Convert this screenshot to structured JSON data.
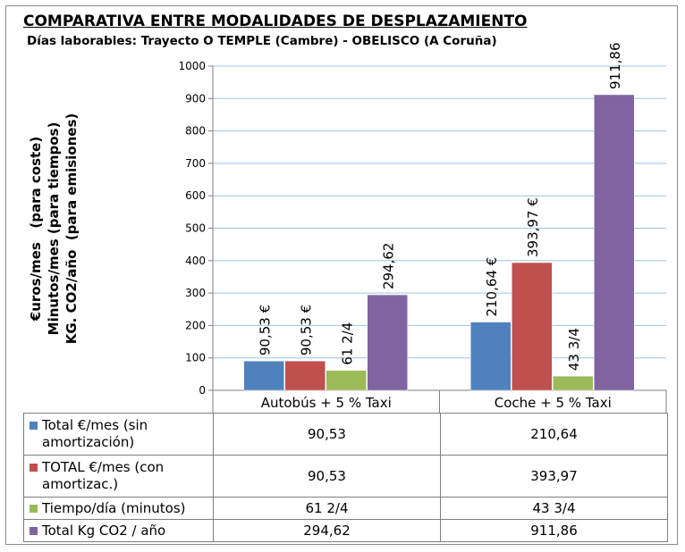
{
  "title": "COMPARATIVA ENTRE MODALIDADES DE DESPLAZAMIENTO",
  "subtitle": "Días laborables: Trayecto O TEMPLE (Cambre) - OBELISCO (A Coruña)",
  "ylabel_lines": [
    "€uros/mes   (para coste)",
    "Minutos/mes (para tiempos)",
    "KG. CO2/año  (para emisiones)"
  ],
  "chart_data": {
    "type": "bar",
    "title": "COMPARATIVA ENTRE MODALIDADES DE DESPLAZAMIENTO",
    "subtitle": "Días laborables: Trayecto O TEMPLE (Cambre) - OBELISCO (A Coruña)",
    "xlabel": "",
    "ylabel": "€uros/mes (para coste) / Minutos/mes (para tiempos) / KG. CO2/año (para emisiones)",
    "ylim": [
      0,
      1000
    ],
    "yticks": [
      0,
      100,
      200,
      300,
      400,
      500,
      600,
      700,
      800,
      900,
      1000
    ],
    "grid": true,
    "categories": [
      "Autobús + 5 % Taxi",
      "Coche + 5 % Taxi"
    ],
    "series": [
      {
        "name": "Total €/mes (sin amortización)",
        "name_lines": [
          "Total €/mes (sin",
          "amortización)"
        ],
        "color": "#4f81bd",
        "values": [
          90.53,
          210.64
        ],
        "labels": [
          "90,53 €",
          "210,64 €"
        ],
        "table_values": [
          "90,53",
          "210,64"
        ]
      },
      {
        "name": "TOTAL €/mes (con amortizac.)",
        "name_lines": [
          "TOTAL €/mes (con",
          "amortizac.)"
        ],
        "color": "#c0504d",
        "values": [
          90.53,
          393.97
        ],
        "labels": [
          "90,53 €",
          "393,97 €"
        ],
        "table_values": [
          "90,53",
          "393,97"
        ]
      },
      {
        "name": "Tiempo/día (minutos)",
        "name_lines": [
          "Tiempo/día (minutos)"
        ],
        "color": "#9bbb59",
        "values": [
          61.5,
          43.75
        ],
        "labels": [
          "61 2/4",
          "43 3/4"
        ],
        "table_values": [
          "61 2/4",
          "43 3/4"
        ]
      },
      {
        "name": "Total Kg CO2 / año",
        "name_lines": [
          "Total Kg CO2 / año"
        ],
        "color": "#8064a2",
        "values": [
          294.62,
          911.86
        ],
        "labels": [
          "294,62",
          "911,86"
        ],
        "table_values": [
          "294,62",
          "911,86"
        ]
      }
    ]
  }
}
